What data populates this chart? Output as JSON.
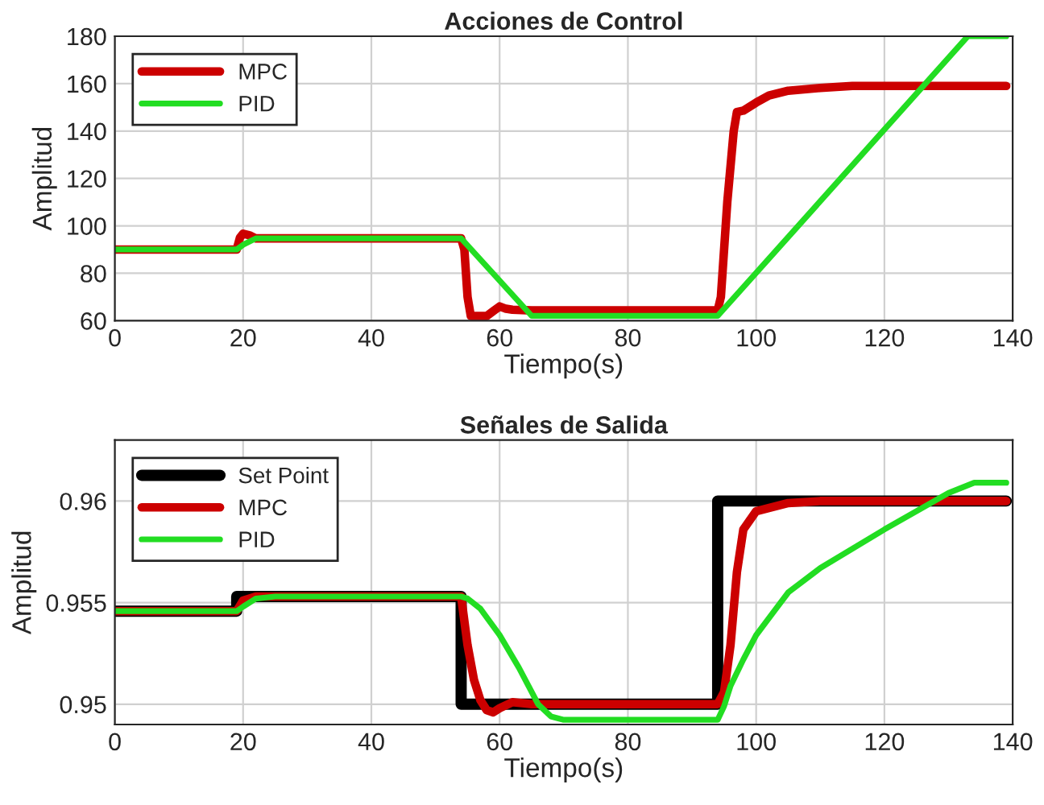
{
  "chart_data": [
    {
      "type": "line",
      "title": "Acciones de Control",
      "xlabel": "Tiempo(s)",
      "ylabel": "Amplitud",
      "xlim": [
        0,
        140
      ],
      "xticks": [
        0,
        20,
        40,
        60,
        80,
        100,
        120,
        140
      ],
      "ylim": [
        60,
        180
      ],
      "yticks": [
        60,
        80,
        100,
        120,
        140,
        160,
        180
      ],
      "grid": true,
      "legend": "top left",
      "line_style": "solid",
      "series": [
        {
          "name": "MPC",
          "color": "#cc0000",
          "x": [
            0,
            19,
            19.5,
            20,
            21,
            22,
            54,
            54.5,
            55,
            55.5,
            58,
            59,
            60,
            61,
            62,
            65,
            94,
            94.5,
            95.5,
            96.5,
            97,
            98,
            100,
            102,
            105,
            110,
            115,
            139
          ],
          "values": [
            90,
            90,
            95,
            96.7,
            96,
            94.7,
            94.7,
            90,
            70,
            62,
            62,
            64,
            66,
            65,
            64.6,
            64.3,
            64.3,
            70,
            110,
            140,
            148,
            148.6,
            152,
            155,
            157,
            158.2,
            159,
            159
          ]
        },
        {
          "name": "PID",
          "color": "#22dd22",
          "x": [
            0,
            19,
            20,
            22,
            54,
            65,
            94,
            133,
            139
          ],
          "values": [
            90,
            90,
            92,
            94.7,
            94.7,
            62,
            62,
            180,
            180
          ]
        }
      ]
    },
    {
      "type": "line",
      "title": "Señales de Salida",
      "xlabel": "Tiempo(s)",
      "ylabel": "Amplitud",
      "xlim": [
        0,
        140
      ],
      "xticks": [
        0,
        20,
        40,
        60,
        80,
        100,
        120,
        140
      ],
      "ylim": [
        0.949,
        0.963
      ],
      "yticks": [
        0.95,
        0.955,
        0.96
      ],
      "grid": true,
      "legend": "top left",
      "line_style": "solid",
      "series": [
        {
          "name": "Set Point",
          "color": "#000000",
          "x": [
            0,
            19,
            19,
            54,
            54,
            94,
            94,
            139
          ],
          "values": [
            0.95458,
            0.95458,
            0.9553,
            0.9553,
            0.95,
            0.95,
            0.96,
            0.96
          ]
        },
        {
          "name": "MPC",
          "color": "#cc0000",
          "x": [
            0,
            19,
            20,
            22,
            54,
            55,
            56,
            57,
            58,
            59,
            60,
            62,
            65,
            94,
            95,
            96,
            97,
            98,
            100,
            105,
            110,
            139
          ],
          "values": [
            0.95458,
            0.95458,
            0.9551,
            0.9553,
            0.9553,
            0.9529,
            0.9512,
            0.9502,
            0.9497,
            0.9496,
            0.9498,
            0.9501,
            0.95,
            0.95,
            0.9506,
            0.9529,
            0.9565,
            0.9586,
            0.9595,
            0.9599,
            0.96,
            0.96
          ]
        },
        {
          "name": "PID",
          "color": "#22dd22",
          "x": [
            0,
            19,
            20,
            22,
            25,
            54,
            55,
            57,
            60,
            63,
            66,
            68,
            70,
            94,
            95,
            96,
            98,
            100,
            105,
            110,
            120,
            130,
            134,
            139
          ],
          "values": [
            0.95458,
            0.95458,
            0.9548,
            0.9552,
            0.9553,
            0.9553,
            0.9552,
            0.9547,
            0.9534,
            0.9518,
            0.95,
            0.9494,
            0.94923,
            0.94923,
            0.9499,
            0.9509,
            0.9522,
            0.9534,
            0.9555,
            0.9567,
            0.9586,
            0.9604,
            0.9609,
            0.9609
          ]
        }
      ]
    }
  ]
}
